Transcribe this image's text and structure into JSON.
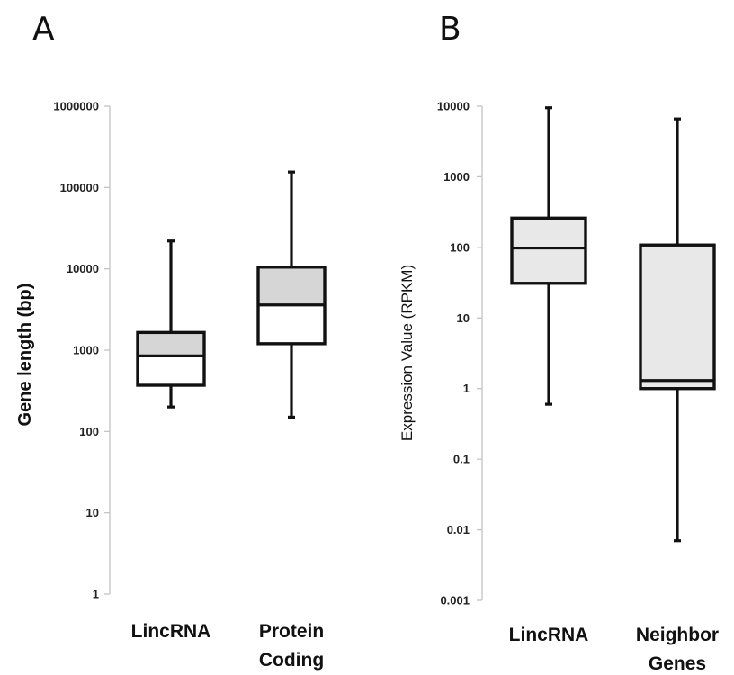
{
  "chart_data": [
    {
      "panel": "A",
      "type": "box",
      "ylabel": "Gene length (bp)",
      "xlabel": "",
      "yscale": "log",
      "ylim": [
        1,
        1000000
      ],
      "yticks": [
        {
          "value": 1000000,
          "label": "1000000"
        },
        {
          "value": 100000,
          "label": "100000"
        },
        {
          "value": 10000,
          "label": "10000"
        },
        {
          "value": 1000,
          "label": "1000"
        },
        {
          "value": 100,
          "label": "100"
        },
        {
          "value": 10,
          "label": "10"
        },
        {
          "value": 1,
          "label": "1"
        }
      ],
      "categories": [
        {
          "lines": [
            "LincRNA"
          ],
          "min": 200,
          "q1": 370,
          "median": 850,
          "q3": 1650,
          "max": 22000
        },
        {
          "lines": [
            "Protein",
            "Coding"
          ],
          "min": 150,
          "q1": 1200,
          "median": 3600,
          "q3": 10500,
          "max": 155000
        }
      ],
      "box_colors": {
        "upper": "#d6d6d6",
        "lower": "#ffffff"
      }
    },
    {
      "panel": "B",
      "type": "box",
      "ylabel": "Expression Value (RPKM)",
      "xlabel": "",
      "yscale": "log",
      "ylim": [
        0.001,
        10000
      ],
      "yticks": [
        {
          "value": 10000,
          "label": "10000"
        },
        {
          "value": 1000,
          "label": "1000"
        },
        {
          "value": 100,
          "label": "100"
        },
        {
          "value": 10,
          "label": "10"
        },
        {
          "value": 1,
          "label": "1"
        },
        {
          "value": 0.1,
          "label": "0.1"
        },
        {
          "value": 0.01,
          "label": "0.01"
        },
        {
          "value": 0.001,
          "label": "0.001"
        }
      ],
      "categories": [
        {
          "lines": [
            "LincRNA"
          ],
          "min": 0.6,
          "q1": 31,
          "median": 98,
          "q3": 260,
          "max": 9500
        },
        {
          "lines": [
            "Neighbor",
            "Genes"
          ],
          "min": 0.007,
          "q1": 1.0,
          "median": 1.3,
          "q3": 108,
          "max": 6600
        }
      ],
      "box_colors": {
        "upper": "#e8e8e8",
        "lower": "#e8e8e8"
      }
    }
  ]
}
